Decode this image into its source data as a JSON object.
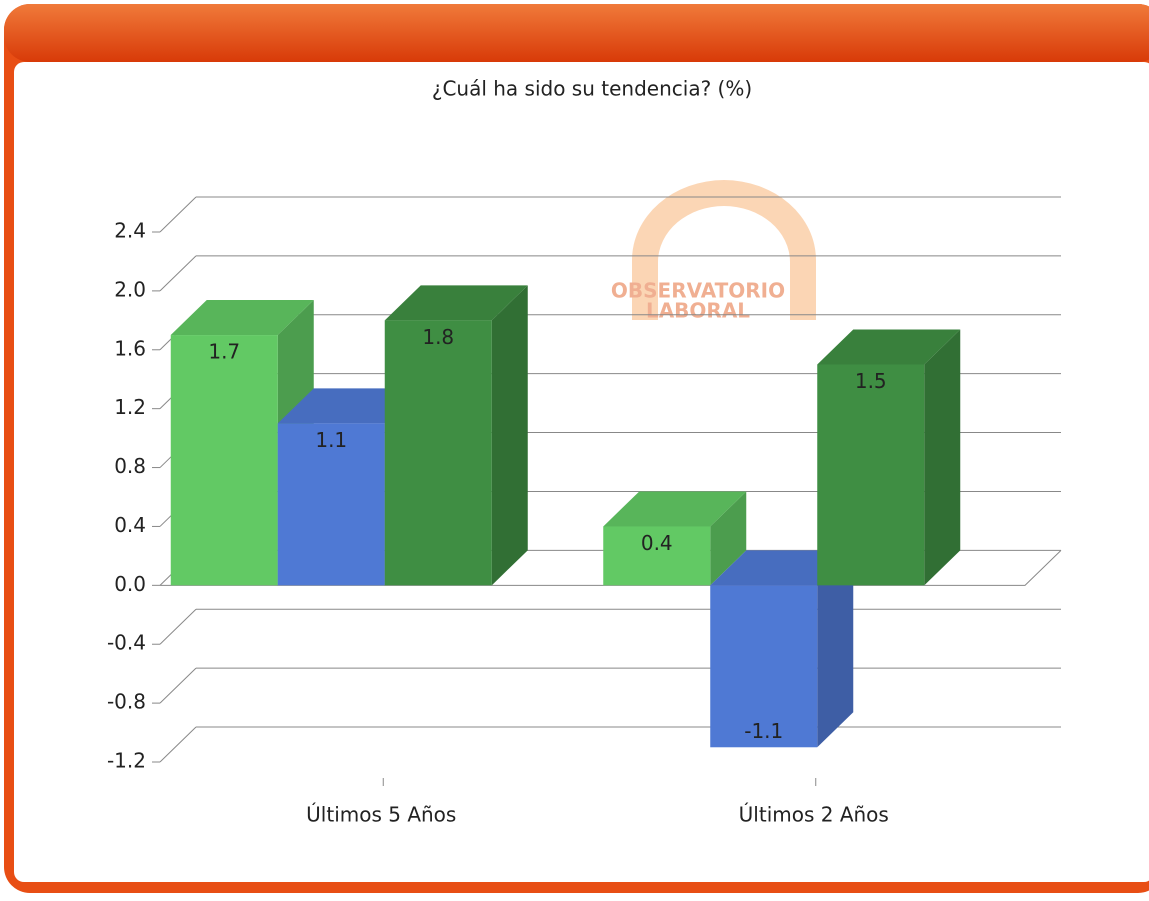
{
  "chart_data": {
    "type": "bar3d",
    "title": "¿Cuál ha sido su tendencia? (%)",
    "categories": [
      "Últimos 5 Años",
      "Últimos 2 Años"
    ],
    "series": [
      {
        "color": "#62c964",
        "values": [
          1.7,
          0.4
        ]
      },
      {
        "color": "#4f79d4",
        "values": [
          1.1,
          -1.1
        ]
      },
      {
        "color": "#3f8e43",
        "values": [
          1.8,
          1.5
        ]
      }
    ],
    "ylim": [
      -1.2,
      2.4
    ],
    "yticks": [
      -1.2,
      -0.8,
      -0.4,
      {
        "value": 0,
        "label": "0.0"
      },
      0.4,
      0.8,
      1.2,
      1.6,
      {
        "value": 2,
        "label": "2.0"
      },
      2.4
    ],
    "grid": true
  },
  "logo": {
    "line1": "OBSERVATORIO",
    "line2": "LABORAL"
  }
}
